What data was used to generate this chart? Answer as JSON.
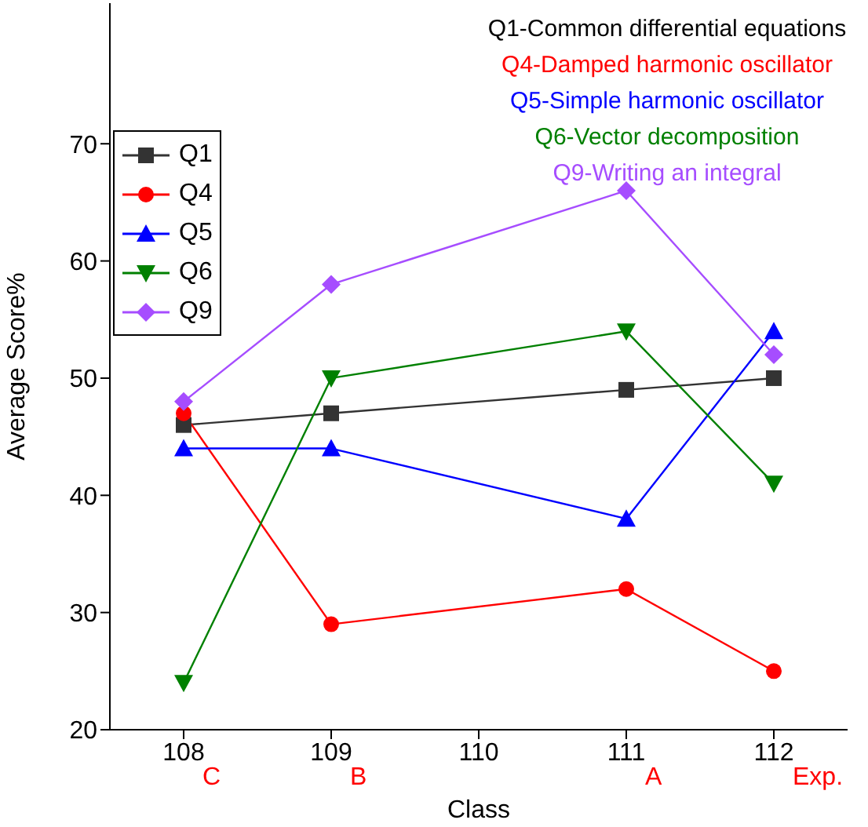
{
  "chart_data": {
    "type": "line",
    "xlabel": "Class",
    "ylabel": "Average Score%",
    "x": [
      108,
      109,
      111,
      112
    ],
    "xlim": [
      107.5,
      112.5
    ],
    "xticks": [
      108,
      109,
      110,
      111,
      112
    ],
    "ylim": [
      20,
      82
    ],
    "yticks": [
      20,
      30,
      40,
      50,
      60,
      70
    ],
    "series": [
      {
        "name": "Q1",
        "color": "#333333",
        "marker": "square",
        "values": [
          46,
          47,
          49,
          50
        ]
      },
      {
        "name": "Q4",
        "color": "#ff0000",
        "marker": "circle",
        "values": [
          47,
          29,
          32,
          25
        ]
      },
      {
        "name": "Q5",
        "color": "#0000ff",
        "marker": "triangle",
        "values": [
          44,
          44,
          38,
          54
        ]
      },
      {
        "name": "Q6",
        "color": "#008000",
        "marker": "triangle-down",
        "values": [
          24,
          50,
          54,
          41
        ]
      },
      {
        "name": "Q9",
        "color": "#a64dff",
        "marker": "diamond",
        "values": [
          48,
          58,
          66,
          52
        ]
      }
    ],
    "annotations": [
      "Q1-Common differential equations",
      "Q4-Damped harmonic oscillator",
      "Q5-Simple harmonic oscillator",
      "Q6-Vector decomposition",
      "Q9-Writing an integral",
      "C",
      "B",
      "A",
      "Exp."
    ],
    "grid": false,
    "legend": "top left",
    "line_style": "solid"
  }
}
